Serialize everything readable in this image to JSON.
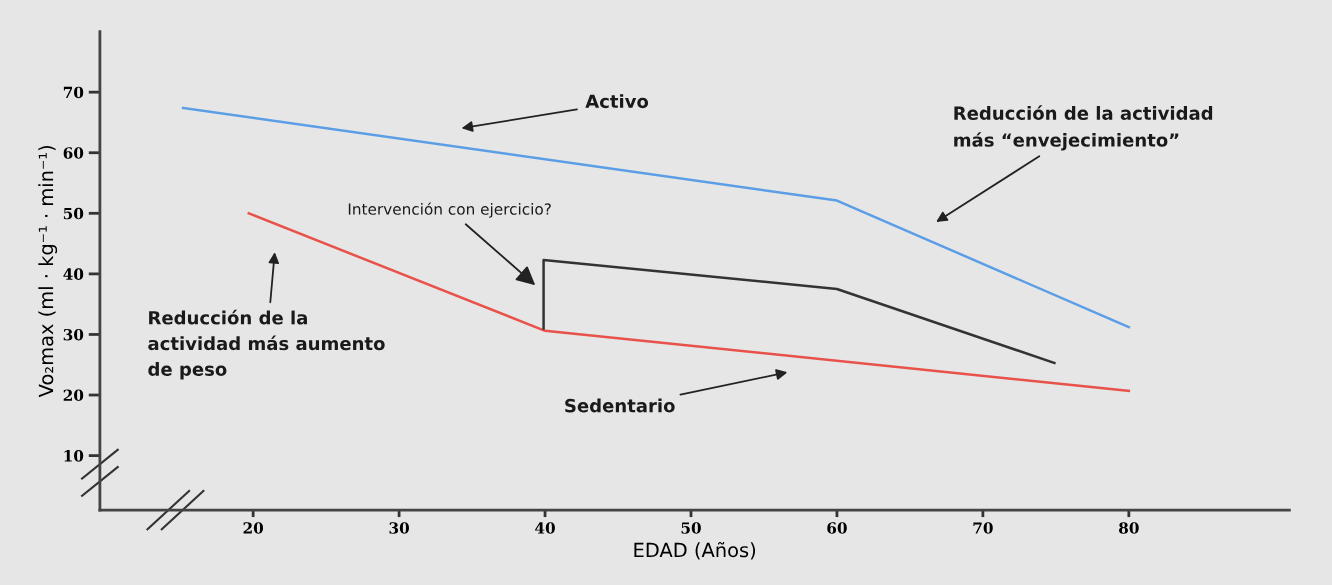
{
  "chart_data": {
    "type": "line",
    "xlabel": "EDAD (Años)",
    "ylabel": "Vo₂max (ml · kg⁻¹ · min⁻¹)",
    "xlim": [
      9.5,
      91
    ],
    "ylim": [
      1,
      80
    ],
    "xticks": [
      20,
      30,
      40,
      50,
      60,
      70,
      80
    ],
    "yticks": [
      10,
      20,
      30,
      40,
      50,
      60,
      70
    ],
    "line_style": "solid",
    "series": [
      {
        "color": "#5b9ee6",
        "x": [
          15.2,
          60,
          80
        ],
        "values": [
          67.4,
          52.1,
          31.2
        ]
      },
      {
        "color": "#e8524a",
        "x": [
          19.7,
          40,
          80
        ],
        "values": [
          50,
          30.6,
          20.7
        ]
      },
      {
        "color": "#333333",
        "x": [
          39.9,
          39.9,
          60,
          74.9
        ],
        "values": [
          31,
          42.3,
          37.5,
          25.3
        ]
      }
    ],
    "annotations": [
      "Activo",
      "Reducción de la actividad\nmás “envejecimiento”",
      "Intervención con ejercicio?",
      "Reducción de la\nactividad más aumento\nde peso",
      "Sedentario"
    ]
  }
}
